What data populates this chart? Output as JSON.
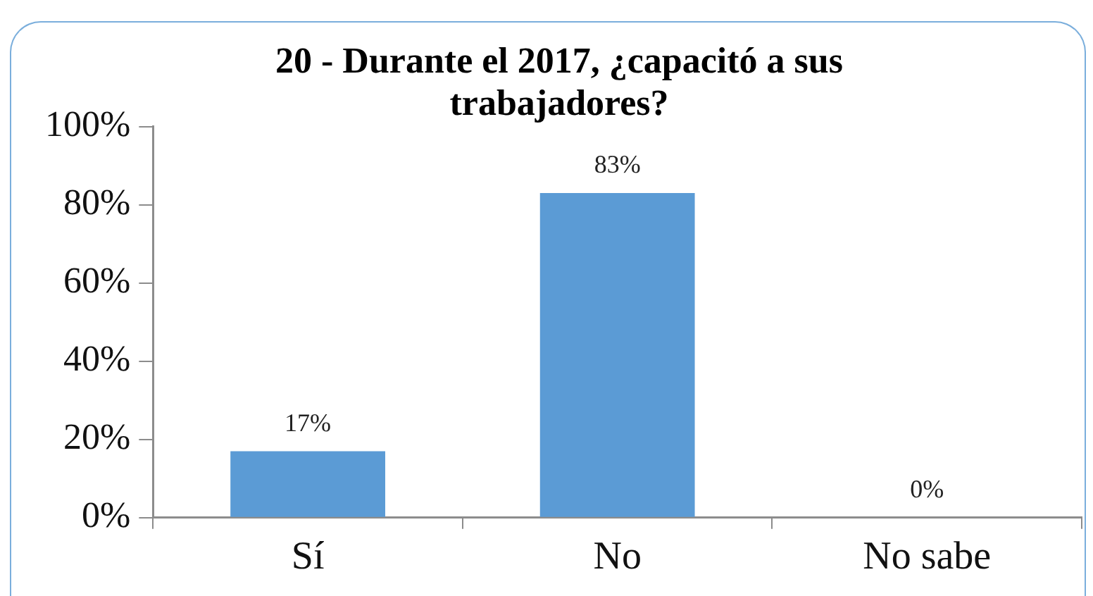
{
  "chart_data": {
    "type": "bar",
    "title": "20 - Durante el 2017, ¿capacitó a sus trabajadores?",
    "categories": [
      "Sí",
      "No",
      "No sabe"
    ],
    "values": [
      17,
      83,
      0
    ],
    "value_labels": [
      "17%",
      "83%",
      "0%"
    ],
    "color": "#5b9bd5",
    "ylim": [
      0,
      100
    ],
    "yticks": [
      {
        "value": 0,
        "label": "0%"
      },
      {
        "value": 20,
        "label": "20%"
      },
      {
        "value": 40,
        "label": "40%"
      },
      {
        "value": 60,
        "label": "60%"
      },
      {
        "value": 80,
        "label": "80%"
      },
      {
        "value": 100,
        "label": "100%"
      }
    ]
  }
}
